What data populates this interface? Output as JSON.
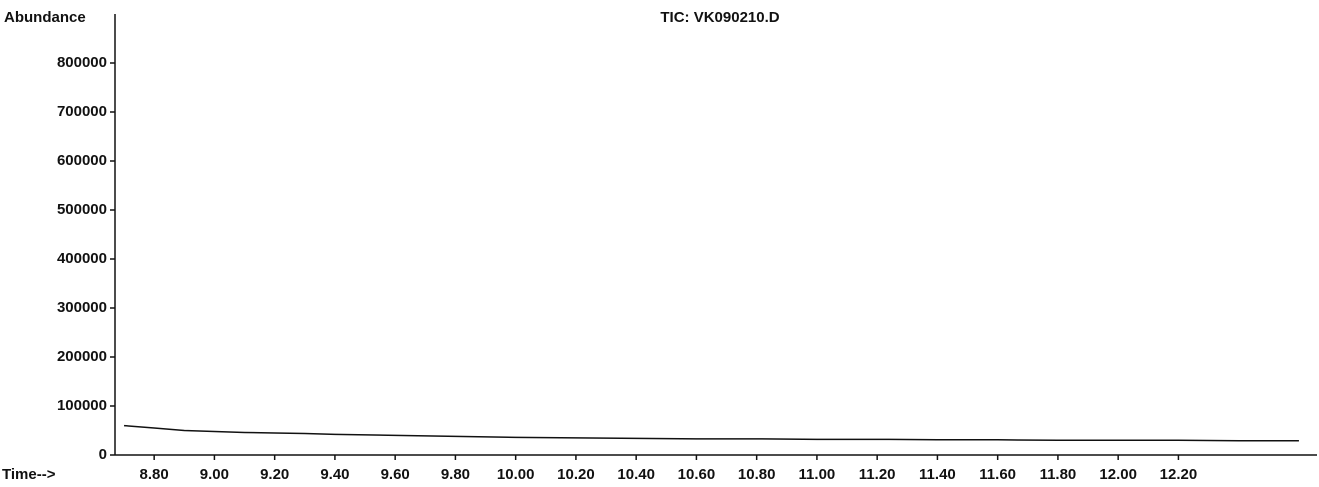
{
  "chart_data": {
    "type": "line",
    "title": "TIC: VK090210.D",
    "y_label": "Abundance",
    "x_label": "Time-->",
    "x": [
      8.7,
      8.8,
      8.9,
      9.0,
      9.1,
      9.2,
      9.3,
      9.4,
      9.6,
      9.8,
      10.0,
      10.2,
      10.4,
      10.6,
      10.8,
      11.0,
      11.2,
      11.4,
      11.6,
      11.8,
      12.0,
      12.2,
      12.4,
      12.6
    ],
    "series": [
      {
        "name": "TIC",
        "color": "#111111",
        "values": [
          60000,
          55000,
          50000,
          48000,
          46000,
          45000,
          44000,
          42000,
          40000,
          38000,
          36000,
          35000,
          34000,
          33000,
          33000,
          32000,
          32000,
          31000,
          31000,
          30000,
          30000,
          30000,
          29000,
          29000
        ]
      }
    ],
    "xlim": [
      8.67,
      12.66
    ],
    "ylim": [
      0,
      900000
    ],
    "xticks": [
      {
        "value": 8.8,
        "label": "8.80"
      },
      {
        "value": 9,
        "label": "9.00"
      },
      {
        "value": 9.2,
        "label": "9.20"
      },
      {
        "value": 9.4,
        "label": "9.40"
      },
      {
        "value": 9.6,
        "label": "9.60"
      },
      {
        "value": 9.8,
        "label": "9.80"
      },
      {
        "value": 10,
        "label": "10.00"
      },
      {
        "value": 10.2,
        "label": "10.20"
      },
      {
        "value": 10.4,
        "label": "10.40"
      },
      {
        "value": 10.6,
        "label": "10.60"
      },
      {
        "value": 10.8,
        "label": "10.80"
      },
      {
        "value": 11,
        "label": "11.00"
      },
      {
        "value": 11.2,
        "label": "11.20"
      },
      {
        "value": 11.4,
        "label": "11.40"
      },
      {
        "value": 11.6,
        "label": "11.60"
      },
      {
        "value": 11.8,
        "label": "11.80"
      },
      {
        "value": 12,
        "label": "12.00"
      },
      {
        "value": 12.2,
        "label": "12.20"
      }
    ],
    "yticks": [
      0,
      100000,
      200000,
      300000,
      400000,
      500000,
      600000,
      700000,
      800000
    ]
  }
}
